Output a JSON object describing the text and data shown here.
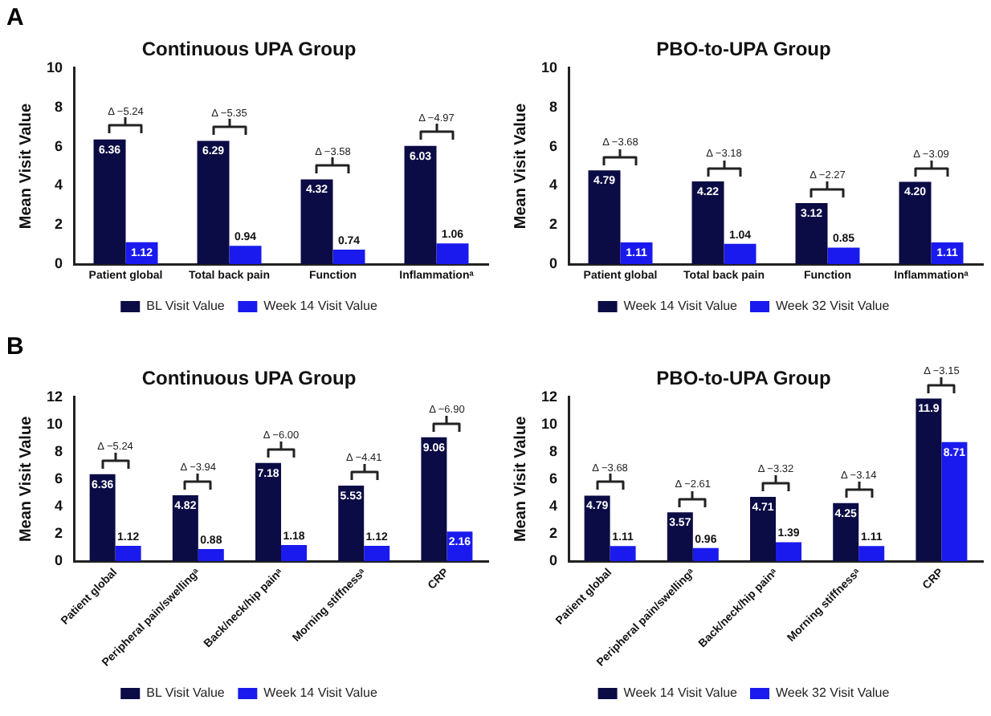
{
  "chart_data": [
    {
      "type": "bar",
      "title": "Continuous UPA Group",
      "ylabel": "Mean Visit Value",
      "categories": [
        "Patient global",
        "Total back pain",
        "Function",
        "Inflammationᵃ"
      ],
      "series": [
        {
          "name": "BL Visit Value",
          "color": "#0b0b45",
          "values": [
            6.36,
            6.29,
            4.32,
            6.03
          ],
          "value_labels": [
            "6.36",
            "6.29",
            "4.32",
            "6.03"
          ]
        },
        {
          "name": "Week 14 Visit Value",
          "color": "#1a1aee",
          "values": [
            1.12,
            0.94,
            0.74,
            1.06
          ],
          "value_labels": [
            "1.12",
            "0.94",
            "0.74",
            "1.06"
          ]
        }
      ],
      "ylim": [
        0,
        10
      ],
      "yticks": [
        0,
        2,
        4,
        6,
        8,
        10
      ],
      "grid": false,
      "legend": "bottom",
      "annotations": [
        "A",
        {
          "text": "Δ −5.24",
          "x": "Patient global",
          "y": 6.36
        },
        {
          "text": "Δ −5.35",
          "x": "Total back pain",
          "y": 6.29
        },
        {
          "text": "Δ −3.58",
          "x": "Function",
          "y": 4.32
        },
        {
          "text": "Δ −4.97",
          "x": "Inflammationᵃ",
          "y": 6.03
        }
      ]
    },
    {
      "type": "bar",
      "title": "PBO-to-UPA Group",
      "ylabel": "Mean Visit Value",
      "categories": [
        "Patient global",
        "Total back pain",
        "Function",
        "Inflammationᵃ"
      ],
      "series": [
        {
          "name": "Week 14 Visit Value",
          "color": "#0b0b45",
          "values": [
            4.79,
            4.22,
            3.12,
            4.2
          ],
          "value_labels": [
            "4.79",
            "4.22",
            "3.12",
            "4.20"
          ]
        },
        {
          "name": "Week 32 Visit Value",
          "color": "#1a1aee",
          "values": [
            1.11,
            1.04,
            0.85,
            1.11
          ],
          "value_labels": [
            "1.11",
            "1.04",
            "0.85",
            "1.11"
          ]
        }
      ],
      "ylim": [
        0,
        10
      ],
      "yticks": [
        0,
        2,
        4,
        6,
        8,
        10
      ],
      "grid": false,
      "legend": "bottom",
      "annotations": [
        {
          "text": "Δ −3.68",
          "x": "Patient global",
          "y": 4.79
        },
        {
          "text": "Δ −3.18",
          "x": "Total back pain",
          "y": 4.22
        },
        {
          "text": "Δ −2.27",
          "x": "Function",
          "y": 3.12
        },
        {
          "text": "Δ −3.09",
          "x": "Inflammationᵃ",
          "y": 4.2
        }
      ]
    },
    {
      "type": "bar",
      "title": "Continuous UPA Group",
      "ylabel": "Mean Visit Value",
      "categories": [
        "Patient global",
        "Peripheral pain/swellingᵃ",
        "Back/neck/hip painᵃ",
        "Morning stiffnessᵃ",
        "CRP"
      ],
      "series": [
        {
          "name": "BL Visit Value",
          "color": "#0b0b45",
          "values": [
            6.36,
            4.82,
            7.18,
            5.53,
            9.06
          ],
          "value_labels": [
            "6.36",
            "4.82",
            "7.18",
            "5.53",
            "9.06"
          ]
        },
        {
          "name": "Week 14 Visit Value",
          "color": "#1a1aee",
          "values": [
            1.12,
            0.88,
            1.18,
            1.12,
            2.16
          ],
          "value_labels": [
            "1.12",
            "0.88",
            "1.18",
            "1.12",
            "2.16"
          ]
        }
      ],
      "ylim": [
        0,
        12
      ],
      "yticks": [
        0,
        2,
        4,
        6,
        8,
        10,
        12
      ],
      "grid": false,
      "legend": "bottom",
      "annotations": [
        "B",
        {
          "text": "Δ −5.24",
          "x": "Patient global",
          "y": 6.36
        },
        {
          "text": "Δ −3.94",
          "x": "Peripheral pain/swellingᵃ",
          "y": 4.82
        },
        {
          "text": "Δ −6.00",
          "x": "Back/neck/hip painᵃ",
          "y": 7.18
        },
        {
          "text": "Δ −4.41",
          "x": "Morning stiffnessᵃ",
          "y": 5.53
        },
        {
          "text": "Δ −6.90",
          "x": "CRP",
          "y": 9.06
        }
      ]
    },
    {
      "type": "bar",
      "title": "PBO-to-UPA Group",
      "ylabel": "Mean Visit Value",
      "categories": [
        "Patient global",
        "Peripheral pain/swellingᵃ",
        "Back/neck/hip painᵃ",
        "Morning stiffnessᵃ",
        "CRP"
      ],
      "series": [
        {
          "name": "Week 14 Visit Value",
          "color": "#0b0b45",
          "values": [
            4.79,
            3.57,
            4.71,
            4.25,
            11.9
          ],
          "value_labels": [
            "4.79",
            "3.57",
            "4.71",
            "4.25",
            "11.9"
          ]
        },
        {
          "name": "Week 32 Visit Value",
          "color": "#1a1aee",
          "values": [
            1.11,
            0.96,
            1.39,
            1.11,
            8.71
          ],
          "value_labels": [
            "1.11",
            "0.96",
            "1.39",
            "1.11",
            "8.71"
          ]
        }
      ],
      "ylim": [
        0,
        12
      ],
      "yticks": [
        0,
        2,
        4,
        6,
        8,
        10,
        12
      ],
      "grid": false,
      "legend": "bottom",
      "annotations": [
        {
          "text": "Δ −3.68",
          "x": "Patient global",
          "y": 4.79
        },
        {
          "text": "Δ −2.61",
          "x": "Peripheral pain/swellingᵃ",
          "y": 3.57
        },
        {
          "text": "Δ −3.32",
          "x": "Back/neck/hip painᵃ",
          "y": 4.71
        },
        {
          "text": "Δ −3.14",
          "x": "Morning stiffnessᵃ",
          "y": 4.25
        },
        {
          "text": "Δ −3.15",
          "x": "CRP",
          "y": 11.9
        }
      ]
    }
  ]
}
